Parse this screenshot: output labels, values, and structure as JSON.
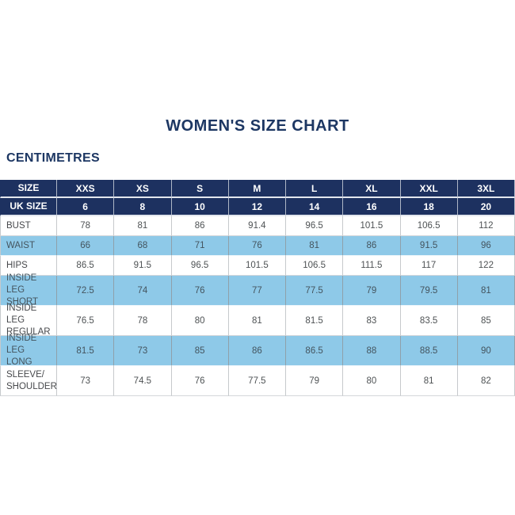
{
  "page": {
    "title": "WOMEN'S SIZE CHART",
    "unit": "CENTIMETRES"
  },
  "colors": {
    "navy": "#1d3160",
    "title_navy": "#1d3763",
    "light_blue": "#8ec9e8",
    "border_gray": "#c6c9cc",
    "text_gray": "#4e5254",
    "background": "#ffffff"
  },
  "chart_data": {
    "type": "table",
    "title": "WOMEN'S SIZE CHART",
    "unit": "CENTIMETRES",
    "table": {
      "columns": [
        "SIZE",
        "XXS",
        "XS",
        "S",
        "M",
        "L",
        "XL",
        "XXL",
        "3XL"
      ],
      "header_rows": [
        {
          "label": "SIZE",
          "values": [
            "XXS",
            "XS",
            "S",
            "M",
            "L",
            "XL",
            "XXL",
            "3XL"
          ]
        },
        {
          "label": "UK SIZE",
          "values": [
            6,
            8,
            10,
            12,
            14,
            16,
            18,
            20
          ]
        }
      ],
      "rows": [
        {
          "label": "BUST",
          "values": [
            78,
            81,
            86,
            91.4,
            96.5,
            101.5,
            106.5,
            112
          ]
        },
        {
          "label": "WAIST",
          "values": [
            66,
            68,
            71,
            76,
            81,
            86,
            91.5,
            96
          ]
        },
        {
          "label": "HIPS",
          "values": [
            86.5,
            91.5,
            96.5,
            101.5,
            106.5,
            111.5,
            117,
            122
          ]
        },
        {
          "label": "INSIDE LEG\nSHORT",
          "values": [
            72.5,
            74,
            76,
            77,
            77.5,
            79,
            79.5,
            81
          ]
        },
        {
          "label": "INSIDE LEG\nREGULAR",
          "values": [
            76.5,
            78,
            80,
            81,
            81.5,
            83,
            83.5,
            85
          ]
        },
        {
          "label": "INSIDE LEG\nLONG",
          "values": [
            81.5,
            73,
            85,
            86,
            86.5,
            88,
            88.5,
            90
          ]
        },
        {
          "label": "SLEEVE/\nSHOULDER",
          "values": [
            73,
            74.5,
            76,
            77.5,
            79,
            80,
            81,
            82
          ]
        }
      ]
    }
  }
}
